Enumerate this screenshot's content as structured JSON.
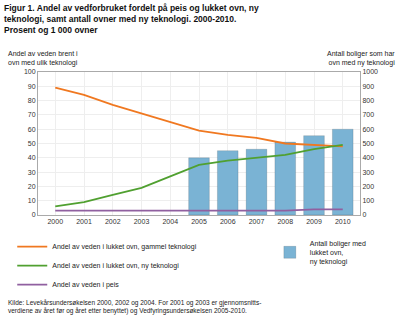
{
  "chart_data": {
    "type": "combo",
    "title": "Figur 1. Andel av vedforbruket fordelt på peis og lukket ovn, ny\nteknologi, samt antall ovner med ny teknologi. 2000-2010.\nProsent og 1 000 ovner",
    "ylabel": "Andel av veden brent i\novn med ulik teknologi",
    "y2label": "Antall boliger som har\novn med ny teknologi",
    "annotations": [
      "Kilde: Levekårsundersøkelsen 2000, 2002 og 2004. For 2001 og 2003 er gjennomsnitts-\nverdiene av året før og året etter benyttet) og Vedfyringsundersøkelsen 2005-2010."
    ],
    "x": [
      2000,
      2001,
      2002,
      2003,
      2004,
      2005,
      2006,
      2007,
      2008,
      2009,
      2010
    ],
    "xlim": [
      1999.4,
      2010.6
    ],
    "xticks": [
      2000,
      2001,
      2002,
      2003,
      2004,
      2005,
      2006,
      2007,
      2008,
      2009,
      2010
    ],
    "ylim": [
      0,
      100
    ],
    "yticks": [
      0,
      10,
      20,
      30,
      40,
      50,
      60,
      70,
      80,
      90,
      100
    ],
    "y2lim": [
      0,
      1000
    ],
    "y2ticks": [
      0,
      100,
      200,
      300,
      400,
      500,
      600,
      700,
      800,
      900,
      1000
    ],
    "grid": true,
    "legend": "bottom",
    "series": [
      {
        "name": "Andel av veden i lukket ovn, gammel teknologi",
        "type": "line",
        "color": "#f07820",
        "values": [
          89,
          84,
          77,
          71,
          65,
          59,
          56,
          54,
          50,
          49,
          48
        ]
      },
      {
        "name": "Andel av veden i lukket ovn, ny teknologi",
        "type": "line",
        "color": "#50a030",
        "values": [
          6,
          9,
          14,
          19,
          27,
          35,
          38,
          40,
          42,
          46,
          49
        ]
      },
      {
        "name": "Andel av veden i peis",
        "type": "line",
        "color": "#9060a0",
        "values": [
          3,
          3,
          3,
          3,
          3,
          3,
          3,
          3,
          3,
          4,
          4
        ]
      },
      {
        "name": "Antall boliger med\nlukket ovn,\nny teknologi",
        "type": "bar",
        "axis": "y2",
        "color": "#7ab3d4",
        "x": [
          2005,
          2006,
          2007,
          2008,
          2009,
          2010
        ],
        "values": [
          400,
          450,
          460,
          510,
          555,
          600
        ]
      }
    ]
  }
}
